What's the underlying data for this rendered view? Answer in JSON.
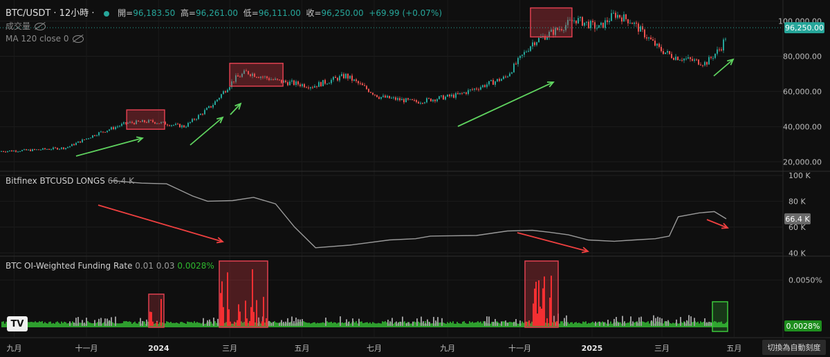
{
  "header": {
    "symbol": "BTC/USDT · 12小時 ·",
    "open_label": "開=",
    "open": "96,183.50",
    "high_label": "高=",
    "high": "96,261.00",
    "low_label": "低=",
    "low": "96,111.00",
    "close_label": "收=",
    "close": "96,250.00",
    "change": "+69.99 (+0.07%)",
    "volume_label": "成交量",
    "ma_label": "MA 120 close 0"
  },
  "colors": {
    "up": "#26a69a",
    "down": "#ef5350",
    "green_arrow": "#5fd35f",
    "red_arrow": "#f04040",
    "funding_green": "#2e9e2e"
  },
  "chart_data": [
    {
      "type": "candlestick",
      "title": "BTC/USDT · 12小時",
      "x": [
        "2023-08-20",
        "2023-09-15",
        "2023-10-15",
        "2023-11-10",
        "2023-12-05",
        "2023-12-25",
        "2024-01-23",
        "2024-02-15",
        "2024-03-05",
        "2024-03-15",
        "2024-04-10",
        "2024-05-10",
        "2024-06-07",
        "2024-07-05",
        "2024-08-05",
        "2024-09-10",
        "2024-10-20",
        "2024-11-12",
        "2024-12-05",
        "2024-12-18",
        "2025-01-07",
        "2025-01-20",
        "2025-02-03",
        "2025-02-27",
        "2025-03-10",
        "2025-04-07",
        "2025-04-20",
        "2025-04-27"
      ],
      "close": [
        26000,
        26600,
        28000,
        36000,
        42000,
        43000,
        40000,
        52000,
        67000,
        71000,
        66000,
        63000,
        69000,
        57000,
        54000,
        58000,
        68000,
        88000,
        96000,
        101000,
        96000,
        104000,
        100000,
        84000,
        80000,
        76000,
        85000,
        96250
      ],
      "ylim": [
        15000,
        112000
      ],
      "yticks": [
        "20,000.00",
        "40,000.00",
        "60,000.00",
        "80,000.00",
        "100,000.00"
      ],
      "last_price": "96,250.00"
    },
    {
      "type": "line",
      "title": "Bitfinex BTCUSD LONGS",
      "current_label": "66.4 K",
      "x": [
        "2023-08-20",
        "2023-09-20",
        "2023-10-15",
        "2023-11-10",
        "2023-11-25",
        "2023-12-20",
        "2024-01-10",
        "2024-02-01",
        "2024-02-20",
        "2024-03-12",
        "2024-04-15",
        "2024-05-25",
        "2024-06-20",
        "2024-07-05",
        "2024-08-20",
        "2024-09-20",
        "2024-10-15",
        "2024-11-01",
        "2024-11-20",
        "2024-12-10",
        "2025-01-05",
        "2025-01-25",
        "2025-02-15",
        "2025-03-01",
        "2025-03-10",
        "2025-03-31",
        "2025-04-15",
        "2025-04-27"
      ],
      "values": [
        96000,
        94000,
        93500,
        84000,
        80000,
        80500,
        83000,
        78000,
        60000,
        44000,
        46000,
        50000,
        51000,
        53000,
        53500,
        57000,
        57500,
        56000,
        54000,
        50000,
        49000,
        50000,
        51000,
        53000,
        68000,
        71000,
        72000,
        66400
      ],
      "ylim": [
        38000,
        100000
      ],
      "yticks": [
        "40 K",
        "60 K",
        "80 K",
        "100 K"
      ]
    },
    {
      "type": "bar",
      "title": "BTC OI-Weighted Funding Rate",
      "params": "0.01 0.03",
      "current_label": "0.0028%",
      "yticks": [
        "0.0050%"
      ],
      "ylim": [
        0,
        0.07
      ],
      "last_value": 0.0028
    }
  ],
  "x_axis": {
    "labels": [
      "九月",
      "十一月",
      "2024",
      "三月",
      "五月",
      "七月",
      "九月",
      "十一月",
      "2025",
      "三月",
      "五月"
    ]
  },
  "autoscale_label": "切換為自動刻度",
  "tv_logo": "TV"
}
